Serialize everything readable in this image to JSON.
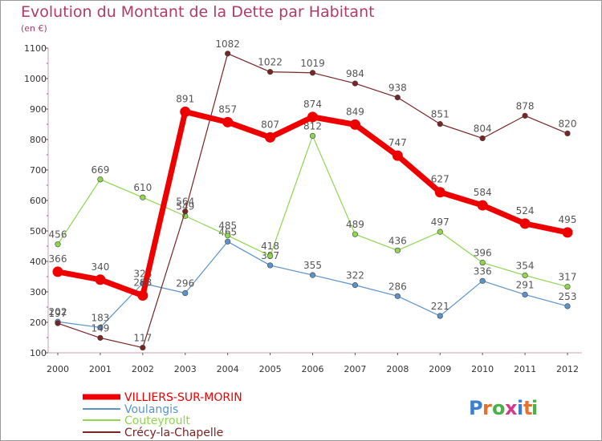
{
  "chart_data": {
    "type": "line",
    "title": "Evolution du Montant de la Dette par Habitant",
    "subtitle": "(en €)",
    "x": [
      2000,
      2001,
      2002,
      2003,
      2004,
      2005,
      2006,
      2007,
      2008,
      2009,
      2010,
      2011,
      2012
    ],
    "ylim": [
      100,
      1100
    ],
    "yticks": [
      100,
      200,
      300,
      400,
      500,
      600,
      700,
      800,
      900,
      1000,
      1100
    ],
    "grid": false,
    "legend": "bottom-left",
    "series": [
      {
        "name": "VILLIERS-SUR-MORIN",
        "color": "#ee0000",
        "values": [
          366,
          340,
          288,
          891,
          857,
          807,
          874,
          849,
          747,
          627,
          584,
          524,
          495
        ],
        "labels": [
          "366",
          "340",
          "288",
          "891",
          "857",
          "807",
          "874",
          "849",
          "747",
          "627",
          "584",
          "524",
          "495"
        ]
      },
      {
        "name": "Voulangis",
        "color": "#5b93c9",
        "values": [
          202,
          183,
          328,
          296,
          465,
          387,
          355,
          322,
          286,
          221,
          336,
          291,
          253
        ],
        "labels": [
          "202",
          "183",
          "328",
          "296",
          "465",
          "387",
          "355",
          "322",
          "286",
          "221",
          "336",
          "291",
          "253"
        ]
      },
      {
        "name": "Couteyroult",
        "color": "#8ed64e",
        "values": [
          456,
          669,
          610,
          549,
          485,
          418,
          812,
          489,
          436,
          497,
          396,
          354,
          317
        ],
        "labels": [
          "456",
          "669",
          "610",
          "549",
          "485",
          "418",
          "812",
          "489",
          "436",
          "497",
          "396",
          "354",
          "317"
        ]
      },
      {
        "name": "Crécy-la-Chapelle",
        "color": "#7a2424",
        "values": [
          197,
          149,
          117,
          564,
          1082,
          1022,
          1019,
          984,
          938,
          851,
          804,
          878,
          820
        ],
        "labels": [
          "197",
          "149",
          "117",
          "564",
          "1082",
          "1022",
          "1019",
          "984",
          "938",
          "851",
          "804",
          "878",
          "820"
        ]
      }
    ]
  },
  "logo": {
    "text": "Proxiti"
  }
}
